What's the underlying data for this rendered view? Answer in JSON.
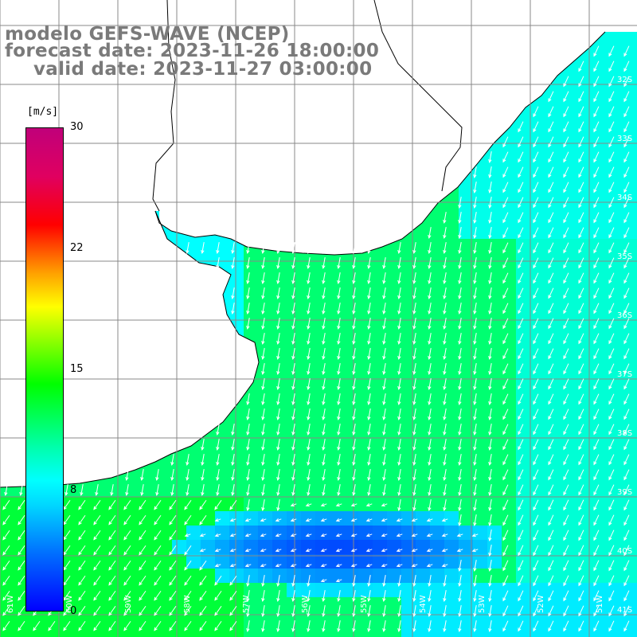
{
  "titles": {
    "line1": "modelo GEFS-WAVE (NCEP)",
    "line2": "forecast date: 2023-11-26 18:00:00",
    "line3": "valid date: 2023-11-27 03:00:00"
  },
  "colorbar": {
    "unit": "[m/s]",
    "ticks": [
      {
        "value": "30"
      },
      {
        "value": "22"
      },
      {
        "value": "15"
      },
      {
        "value": "8"
      },
      {
        "value": "0"
      }
    ],
    "colors": [
      "#0000ff",
      "#00d8ff",
      "#00ffff",
      "#00ff00",
      "#ffff00",
      "#ff0000",
      "#c0007a"
    ]
  },
  "map": {
    "land_color": "#ffffff",
    "coast_color": "#000000",
    "grid_color": "#888888",
    "arrow_color": "#ffffff",
    "lat_labels": [
      "32S",
      "33S",
      "34S",
      "35S",
      "36S",
      "37S",
      "38S",
      "39S",
      "40S",
      "41S"
    ],
    "lon_labels": [
      "61W",
      "60W",
      "59W",
      "58W",
      "57W",
      "56W",
      "55W",
      "54W",
      "53W",
      "52W",
      "51W"
    ]
  }
}
